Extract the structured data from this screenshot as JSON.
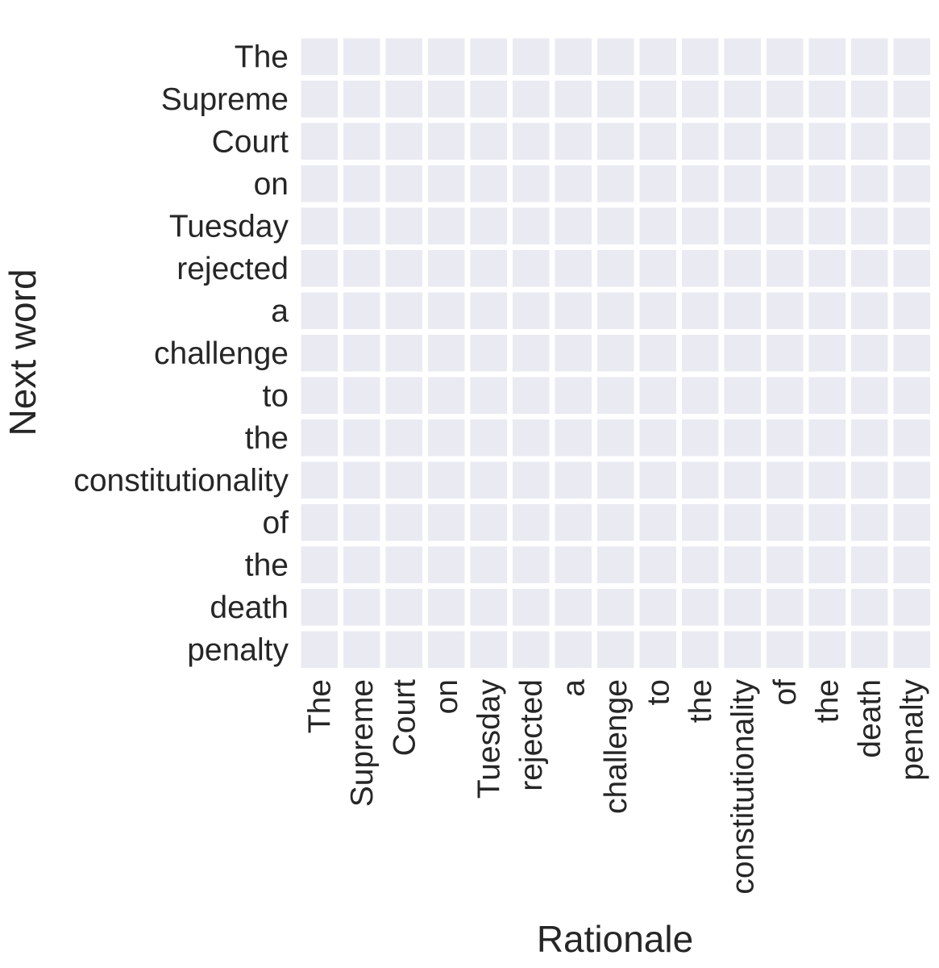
{
  "chart_data": {
    "type": "heatmap",
    "title": "",
    "xlabel": "Rationale",
    "ylabel": "Next word",
    "x_categories": [
      "The",
      "Supreme",
      "Court",
      "on",
      "Tuesday",
      "rejected",
      "a",
      "challenge",
      "to",
      "the",
      "constitutionality",
      "of",
      "the",
      "death",
      "penalty"
    ],
    "y_categories": [
      "The",
      "Supreme",
      "Court",
      "on",
      "Tuesday",
      "rejected",
      "a",
      "challenge",
      "to",
      "the",
      "constitutionality",
      "of",
      "the",
      "death",
      "penalty"
    ],
    "values": [
      [
        0,
        0,
        0,
        0,
        0,
        0,
        0,
        0,
        0,
        0,
        0,
        0,
        0,
        0,
        0
      ],
      [
        0,
        0,
        0,
        0,
        0,
        0,
        0,
        0,
        0,
        0,
        0,
        0,
        0,
        0,
        0
      ],
      [
        0,
        0,
        0,
        0,
        0,
        0,
        0,
        0,
        0,
        0,
        0,
        0,
        0,
        0,
        0
      ],
      [
        0,
        0,
        0,
        0,
        0,
        0,
        0,
        0,
        0,
        0,
        0,
        0,
        0,
        0,
        0
      ],
      [
        0,
        0,
        0,
        0,
        0,
        0,
        0,
        0,
        0,
        0,
        0,
        0,
        0,
        0,
        0
      ],
      [
        0,
        0,
        0,
        0,
        0,
        0,
        0,
        0,
        0,
        0,
        0,
        0,
        0,
        0,
        0
      ],
      [
        0,
        0,
        0,
        0,
        0,
        0,
        0,
        0,
        0,
        0,
        0,
        0,
        0,
        0,
        0
      ],
      [
        0,
        0,
        0,
        0,
        0,
        0,
        0,
        0,
        0,
        0,
        0,
        0,
        0,
        0,
        0
      ],
      [
        0,
        0,
        0,
        0,
        0,
        0,
        0,
        0,
        0,
        0,
        0,
        0,
        0,
        0,
        0
      ],
      [
        0,
        0,
        0,
        0,
        0,
        0,
        0,
        0,
        0,
        0,
        0,
        0,
        0,
        0,
        0
      ],
      [
        0,
        0,
        0,
        0,
        0,
        0,
        0,
        0,
        0,
        0,
        0,
        0,
        0,
        0,
        0
      ],
      [
        0,
        0,
        0,
        0,
        0,
        0,
        0,
        0,
        0,
        0,
        0,
        0,
        0,
        0,
        0
      ],
      [
        0,
        0,
        0,
        0,
        0,
        0,
        0,
        0,
        0,
        0,
        0,
        0,
        0,
        0,
        0
      ],
      [
        0,
        0,
        0,
        0,
        0,
        0,
        0,
        0,
        0,
        0,
        0,
        0,
        0,
        0,
        0
      ],
      [
        0,
        0,
        0,
        0,
        0,
        0,
        0,
        0,
        0,
        0,
        0,
        0,
        0,
        0,
        0
      ]
    ],
    "cell_color": "#eaeaf2",
    "grid_color": "#ffffff",
    "text_color": "#262626"
  }
}
